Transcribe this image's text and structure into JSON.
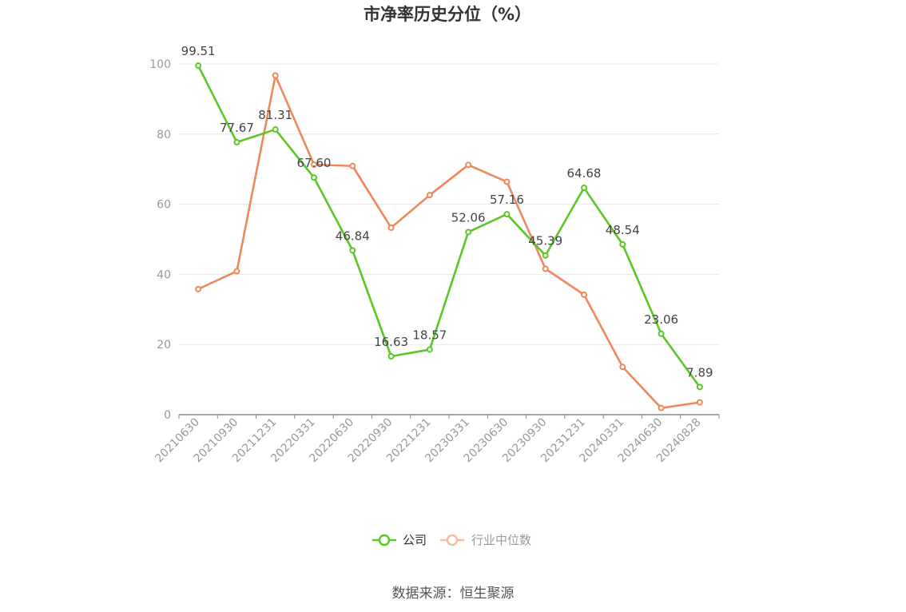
{
  "chart_data": {
    "type": "line",
    "title": "市净率历史分位（%）",
    "source": "数据来源：恒生聚源",
    "categories": [
      "20210630",
      "20210930",
      "20211231",
      "20220331",
      "20220630",
      "20220930",
      "20221231",
      "20230331",
      "20230630",
      "20230930",
      "20231231",
      "20240331",
      "20240630",
      "20240828"
    ],
    "ylim": [
      0,
      100
    ],
    "yticks": [
      0,
      20,
      40,
      60,
      80,
      100
    ],
    "grid": true,
    "legend_position": "bottom",
    "series": [
      {
        "name": "公司",
        "color": "#5ac727",
        "show_labels": true,
        "values": [
          99.51,
          77.67,
          81.31,
          67.6,
          46.84,
          16.63,
          18.57,
          52.06,
          57.16,
          45.39,
          64.68,
          48.54,
          23.06,
          7.89
        ],
        "labels": [
          "99.51",
          "77.67",
          "81.31",
          "67.60",
          "46.84",
          "16.63",
          "18.57",
          "52.06",
          "57.16",
          "45.39",
          "64.68",
          "48.54",
          "23.06",
          "7.89"
        ]
      },
      {
        "name": "行业中位数",
        "color": "#f0875a",
        "legend_color": "#f9b9a0",
        "show_labels": false,
        "values": [
          35.8,
          40.9,
          96.7,
          71.3,
          70.9,
          53.3,
          62.6,
          71.2,
          66.4,
          41.6,
          34.2,
          13.6,
          1.9,
          3.5
        ]
      }
    ]
  }
}
